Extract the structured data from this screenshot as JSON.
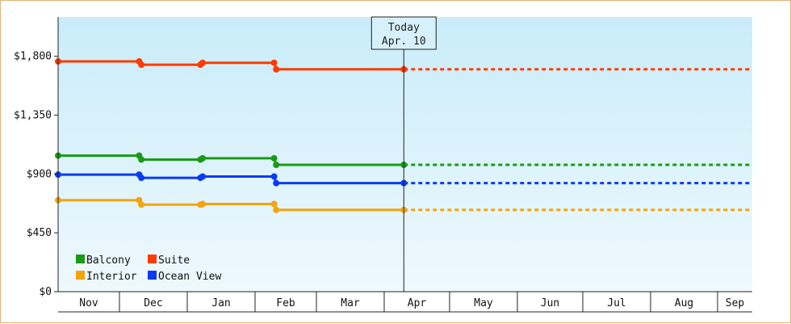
{
  "chart_data": {
    "type": "line",
    "currency": "$",
    "y_ticks": [
      "$0",
      "$450",
      "$900",
      "$1,350",
      "$1,800"
    ],
    "ylim": [
      0,
      2100
    ],
    "x_months": [
      "Nov",
      "Dec",
      "Jan",
      "Feb",
      "Mar",
      "Apr",
      "May",
      "Jun",
      "Jul",
      "Aug",
      "Sep"
    ],
    "today": {
      "line1": "Today",
      "line2": "Apr. 10",
      "date": "2024-04-10"
    },
    "grid": false,
    "legend_position": "bottom-left",
    "series": [
      {
        "name": "Balcony",
        "color": "#1a9a16",
        "points": [
          {
            "date": "2023-11-01",
            "value": 1040
          },
          {
            "date": "2023-12-10",
            "value": 1040
          },
          {
            "date": "2023-12-11",
            "value": 1010
          },
          {
            "date": "2024-01-07",
            "value": 1010
          },
          {
            "date": "2024-01-08",
            "value": 1020
          },
          {
            "date": "2024-02-10",
            "value": 1020
          },
          {
            "date": "2024-02-11",
            "value": 970
          },
          {
            "date": "2024-04-10",
            "value": 970
          }
        ],
        "projection_value": 970
      },
      {
        "name": "Suite",
        "color": "#ff3a00",
        "points": [
          {
            "date": "2023-11-01",
            "value": 1760
          },
          {
            "date": "2023-12-10",
            "value": 1760
          },
          {
            "date": "2023-12-11",
            "value": 1735
          },
          {
            "date": "2024-01-07",
            "value": 1735
          },
          {
            "date": "2024-01-08",
            "value": 1750
          },
          {
            "date": "2024-02-10",
            "value": 1750
          },
          {
            "date": "2024-02-11",
            "value": 1700
          },
          {
            "date": "2024-04-10",
            "value": 1700
          }
        ],
        "projection_value": 1700
      },
      {
        "name": "Interior",
        "color": "#f4a40e",
        "points": [
          {
            "date": "2023-11-01",
            "value": 700
          },
          {
            "date": "2023-12-10",
            "value": 700
          },
          {
            "date": "2023-12-11",
            "value": 665
          },
          {
            "date": "2024-01-07",
            "value": 665
          },
          {
            "date": "2024-01-08",
            "value": 670
          },
          {
            "date": "2024-02-10",
            "value": 670
          },
          {
            "date": "2024-02-11",
            "value": 625
          },
          {
            "date": "2024-04-10",
            "value": 625
          }
        ],
        "projection_value": 625
      },
      {
        "name": "Ocean View",
        "color": "#0a3af5",
        "points": [
          {
            "date": "2023-11-01",
            "value": 895
          },
          {
            "date": "2023-12-10",
            "value": 895
          },
          {
            "date": "2023-12-11",
            "value": 870
          },
          {
            "date": "2024-01-07",
            "value": 870
          },
          {
            "date": "2024-01-08",
            "value": 880
          },
          {
            "date": "2024-02-10",
            "value": 880
          },
          {
            "date": "2024-02-11",
            "value": 830
          },
          {
            "date": "2024-04-10",
            "value": 830
          }
        ],
        "projection_value": 830
      }
    ],
    "legend_order": [
      "Balcony",
      "Suite",
      "Interior",
      "Ocean View"
    ]
  }
}
